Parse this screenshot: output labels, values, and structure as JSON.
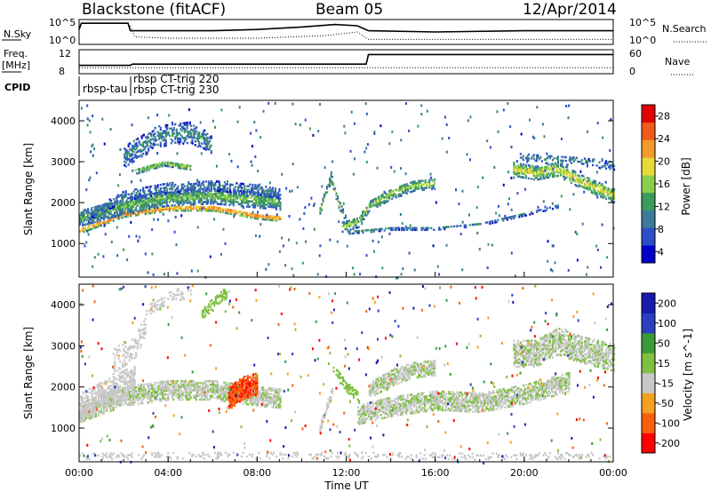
{
  "header": {
    "title": "Blackstone (fitACF)",
    "beam": "Beam 05",
    "date": "12/Apr/2014"
  },
  "chart_data": [
    {
      "type": "line",
      "panel": "nsky-nsearch",
      "left_label": "N.Sky",
      "right_label": "N.Search",
      "left_ticks": [
        "10^5",
        "10^0"
      ],
      "right_ticks": [
        "10^5",
        "10^0"
      ],
      "series": [
        {
          "name": "N.Sky",
          "style": "solid",
          "x": [
            0,
            0.1,
            2.2,
            2.3,
            4,
            6,
            8,
            10,
            11.5,
            12.5,
            13,
            16,
            20,
            24
          ],
          "values": [
            0.6,
            0.85,
            0.85,
            0.55,
            0.55,
            0.55,
            0.6,
            0.7,
            0.8,
            0.75,
            0.55,
            0.5,
            0.55,
            0.55
          ]
        },
        {
          "name": "N.Search",
          "style": "dotted",
          "x": [
            2.3,
            2.5,
            4,
            8,
            11,
            12.5,
            13,
            16,
            20,
            24
          ],
          "values": [
            0.75,
            0.3,
            0.25,
            0.25,
            0.35,
            0.5,
            0.2,
            0.2,
            0.2,
            0.2
          ]
        }
      ]
    },
    {
      "type": "line",
      "panel": "freq-nave",
      "left_label": "Freq.",
      "left_unit": "[MHz]",
      "right_label": "Nave",
      "left_ticks": [
        "12",
        "8"
      ],
      "right_ticks": [
        "60",
        "0"
      ],
      "series": [
        {
          "name": "Freq.",
          "style": "solid",
          "x": [
            0,
            2.3,
            2.4,
            12.9,
            13.0,
            24
          ],
          "values": [
            0.35,
            0.35,
            0.4,
            0.4,
            0.8,
            0.8
          ]
        },
        {
          "name": "Nave",
          "style": "dotted",
          "x": [
            0,
            24
          ],
          "values": [
            0.25,
            0.25
          ]
        }
      ]
    },
    {
      "type": "text",
      "panel": "cpid",
      "label": "CPID",
      "entries": [
        {
          "text": "rbsp-tau",
          "x_hours": 0.1
        },
        {
          "text": "rbsp CT-trig 220",
          "x_hours": 2.3
        },
        {
          "text": "rbsp CT-trig 230",
          "x_hours": 2.3
        }
      ]
    },
    {
      "type": "heatmap",
      "panel": "power",
      "ylabel": "Slant Range [km]",
      "yticks": [
        1000,
        2000,
        3000,
        4000
      ],
      "ylim": [
        180,
        4500
      ],
      "colorbar": {
        "label": "Power [dB]",
        "ticks": [
          28,
          24,
          20,
          16,
          12,
          8,
          4
        ],
        "range": [
          0,
          30
        ],
        "colors": [
          "#0000cc",
          "#2a4fc8",
          "#3d7a9a",
          "#3c9a5a",
          "#8ccf4a",
          "#e8d83a",
          "#f49a2a",
          "#f05a1a",
          "#e00000"
        ]
      },
      "bands": [
        {
          "x": [
            0,
            2,
            4,
            6,
            8,
            9
          ],
          "y": [
            1300,
            1700,
            1850,
            1850,
            1650,
            1600
          ],
          "width": 130,
          "density": 0.97,
          "value": 26
        },
        {
          "x": [
            0,
            2,
            4,
            6,
            8,
            9
          ],
          "y": [
            1600,
            1900,
            2100,
            2150,
            2050,
            2000
          ],
          "width": 380,
          "density": 0.9,
          "value": 14
        },
        {
          "x": [
            0.5,
            2,
            4,
            6,
            8,
            9
          ],
          "y": [
            1700,
            2150,
            2350,
            2400,
            2300,
            2200
          ],
          "width": 240,
          "density": 0.55,
          "value": 9
        },
        {
          "x": [
            2,
            3.5,
            5,
            5.9
          ],
          "y": [
            3100,
            3600,
            3700,
            3400
          ],
          "width": 500,
          "density": 0.55,
          "value": 10
        },
        {
          "x": [
            2.5,
            3.8,
            5
          ],
          "y": [
            2750,
            2950,
            2850
          ],
          "width": 130,
          "density": 0.85,
          "value": 17
        },
        {
          "x": [
            10.8,
            11.3,
            11.6,
            12
          ],
          "y": [
            1800,
            2600,
            2000,
            1500
          ],
          "width": 180,
          "density": 0.8,
          "value": 15
        },
        {
          "x": [
            11.8,
            12.5,
            13,
            14,
            15,
            16
          ],
          "y": [
            1400,
            1500,
            1900,
            2200,
            2400,
            2450
          ],
          "width": 260,
          "density": 0.75,
          "value": 16
        },
        {
          "x": [
            12,
            14,
            16,
            18,
            20,
            21.5
          ],
          "y": [
            1250,
            1350,
            1350,
            1450,
            1700,
            1900
          ],
          "width": 70,
          "density": 0.6,
          "value": 10
        },
        {
          "x": [
            19.5,
            20.5,
            21.5,
            22.5,
            24
          ],
          "y": [
            2800,
            2700,
            2800,
            2500,
            2150
          ],
          "width": 320,
          "density": 0.8,
          "value": 19
        },
        {
          "x": [
            19.8,
            21,
            22.5,
            24
          ],
          "y": [
            3100,
            3050,
            3000,
            2900
          ],
          "width": 220,
          "density": 0.4,
          "value": 9
        }
      ]
    },
    {
      "type": "heatmap",
      "panel": "velocity",
      "ylabel": "Slant Range [km]",
      "xlabel": "Time UT",
      "xticks": [
        "00:00",
        "04:00",
        "08:00",
        "12:00",
        "16:00",
        "20:00",
        "00:00"
      ],
      "xlim": [
        0,
        24
      ],
      "yticks": [
        1000,
        2000,
        3000,
        4000
      ],
      "ylim": [
        180,
        4500
      ],
      "colorbar": {
        "label": "Velocity [m s^-1]",
        "ticks": [
          200,
          100,
          50,
          15,
          -15,
          -50,
          -100,
          -200
        ],
        "range": [
          -250,
          250
        ],
        "colors": [
          "#ff0000",
          "#f86010",
          "#f4a020",
          "#c8c8c8",
          "#7fc040",
          "#3a9a3a",
          "#2a40c0",
          "#1a1ab0"
        ]
      },
      "bands": [
        {
          "x": [
            0,
            2,
            4,
            6,
            8,
            9
          ],
          "y": [
            1350,
            1750,
            1900,
            1900,
            1750,
            1700
          ],
          "width": 450,
          "density": 0.85,
          "value": -5
        },
        {
          "x": [
            0,
            1.5,
            2.5
          ],
          "y": [
            1500,
            1900,
            2200
          ],
          "width": 700,
          "density": 0.7,
          "value": -30
        },
        {
          "x": [
            1.5,
            2.5,
            3
          ],
          "y": [
            2600,
            3000,
            3500
          ],
          "width": 600,
          "density": 0.35,
          "value": -30
        },
        {
          "x": [
            3,
            4,
            5
          ],
          "y": [
            3800,
            4200,
            4300
          ],
          "width": 300,
          "density": 0.3,
          "value": -30
        },
        {
          "x": [
            6.7,
            7.3,
            8
          ],
          "y": [
            1700,
            1950,
            2050
          ],
          "width": 550,
          "density": 0.95,
          "value": -180
        },
        {
          "x": [
            5.5,
            6,
            6.6
          ],
          "y": [
            3800,
            4000,
            4300
          ],
          "width": 300,
          "density": 0.6,
          "value": 45
        },
        {
          "x": [
            10.8,
            11.1,
            11.4
          ],
          "y": [
            1000,
            1500,
            2000
          ],
          "width": 220,
          "density": 0.8,
          "value": -50
        },
        {
          "x": [
            11.4,
            12,
            12.6
          ],
          "y": [
            2400,
            2000,
            1700
          ],
          "width": 260,
          "density": 0.7,
          "value": 25
        },
        {
          "x": [
            13,
            14,
            15,
            16
          ],
          "y": [
            1900,
            2200,
            2400,
            2450
          ],
          "width": 380,
          "density": 0.85,
          "value": -5
        },
        {
          "x": [
            12.5,
            14,
            16,
            18,
            20,
            22
          ],
          "y": [
            1300,
            1500,
            1650,
            1600,
            1800,
            2100
          ],
          "width": 450,
          "density": 0.8,
          "value": -5
        },
        {
          "x": [
            19.5,
            20.5,
            21.5,
            22.5,
            24
          ],
          "y": [
            2800,
            2800,
            3100,
            2900,
            2700
          ],
          "width": 650,
          "density": 0.8,
          "value": -5
        },
        {
          "x": [
            0,
            6,
            12,
            18,
            24
          ],
          "y": [
            300,
            320,
            320,
            300,
            320
          ],
          "width": 150,
          "density": 0.25,
          "value": -40
        }
      ]
    }
  ]
}
